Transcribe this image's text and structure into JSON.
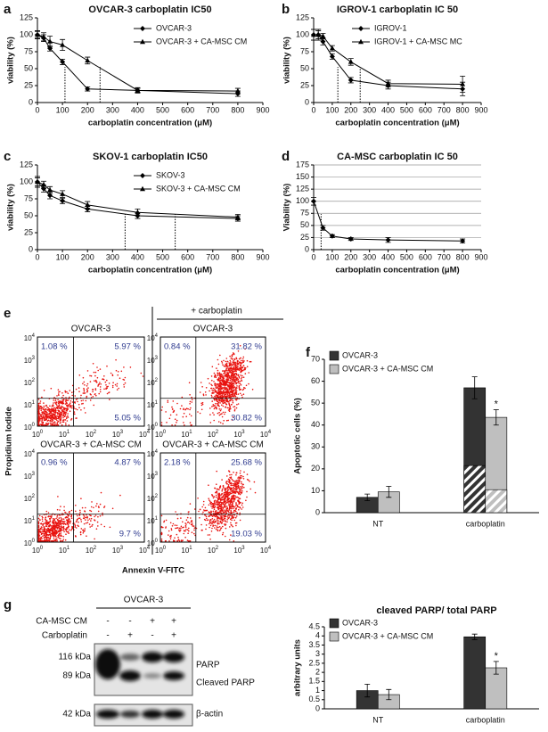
{
  "chart_data": [
    {
      "type": "line",
      "panel_label": "a",
      "title": "OVCAR-3 carboplatin IC50",
      "x_label": "carboplatin concentration (μM)",
      "y_label": "viability (%)",
      "x": [
        0,
        25,
        50,
        100,
        200,
        400,
        800
      ],
      "xlim": [
        0,
        900
      ],
      "xticks": [
        0,
        100,
        200,
        300,
        400,
        500,
        600,
        700,
        800,
        900
      ],
      "ylim": [
        0,
        125
      ],
      "yticks": [
        0,
        25,
        50,
        75,
        100,
        125
      ],
      "grid": false,
      "legend": "upper right",
      "reference_lines": [
        110,
        250
      ],
      "series": [
        {
          "name": "OVCAR-3",
          "color": "#000000",
          "marker": "diamond",
          "values": [
            100,
            95,
            80,
            60,
            20,
            18,
            13
          ],
          "errors": [
            5,
            5,
            4,
            4,
            3,
            3,
            4
          ]
        },
        {
          "name": "OVCAR-3 + CA-MSC CM",
          "color": "#000000",
          "marker": "triangle",
          "values": [
            100,
            97,
            90,
            85,
            62,
            18,
            17
          ],
          "errors": [
            6,
            6,
            8,
            8,
            5,
            4,
            4
          ]
        }
      ]
    },
    {
      "type": "line",
      "panel_label": "b",
      "title": "IGROV-1 carboplatin IC 50",
      "x_label": "carboplatin concentration (μM)",
      "y_label": "viability (%)",
      "x": [
        0,
        25,
        50,
        100,
        200,
        400,
        800
      ],
      "xlim": [
        0,
        900
      ],
      "xticks": [
        0,
        100,
        200,
        300,
        400,
        500,
        600,
        700,
        800,
        900
      ],
      "ylim": [
        0,
        125
      ],
      "yticks": [
        0,
        25,
        50,
        75,
        100,
        125
      ],
      "grid": false,
      "legend": "upper right",
      "reference_lines": [
        130,
        250
      ],
      "series": [
        {
          "name": "IGROV-1",
          "color": "#000000",
          "marker": "diamond",
          "values": [
            100,
            100,
            90,
            68,
            33,
            25,
            20
          ],
          "errors": [
            8,
            6,
            5,
            4,
            4,
            5,
            10
          ]
        },
        {
          "name": "IGROV-1 + CA-MSC MC",
          "color": "#000000",
          "marker": "triangle",
          "values": [
            100,
            100,
            98,
            80,
            60,
            28,
            27
          ],
          "errors": [
            8,
            8,
            4,
            4,
            5,
            5,
            12
          ]
        }
      ]
    },
    {
      "type": "line",
      "panel_label": "c",
      "title": "SKOV-1 carboplatin IC50",
      "x_label": "carboplatin concentration (μM)",
      "y_label": "viability (%)",
      "x": [
        0,
        25,
        50,
        100,
        200,
        400,
        800
      ],
      "xlim": [
        0,
        900
      ],
      "xticks": [
        0,
        100,
        200,
        300,
        400,
        500,
        600,
        700,
        800,
        900
      ],
      "ylim": [
        0,
        125
      ],
      "yticks": [
        0,
        25,
        50,
        75,
        100,
        125
      ],
      "grid": false,
      "legend": "upper right",
      "reference_lines": [
        350,
        550
      ],
      "series": [
        {
          "name": "SKOV-3",
          "color": "#000000",
          "marker": "diamond",
          "values": [
            100,
            90,
            80,
            72,
            60,
            50,
            46
          ],
          "errors": [
            8,
            5,
            5,
            4,
            4,
            4,
            4
          ]
        },
        {
          "name": "SKOV-3 + CA-MSC CM",
          "color": "#000000",
          "marker": "triangle",
          "values": [
            100,
            96,
            88,
            82,
            66,
            55,
            48
          ],
          "errors": [
            6,
            5,
            5,
            5,
            5,
            5,
            4
          ]
        }
      ]
    },
    {
      "type": "line",
      "panel_label": "d",
      "title": "CA-MSC carboplatin IC 50",
      "x_label": "carboplatin concentration (μM)",
      "y_label": "Viability (%)",
      "x": [
        0,
        50,
        100,
        200,
        400,
        800
      ],
      "xlim": [
        0,
        900
      ],
      "xticks": [
        0,
        100,
        200,
        300,
        400,
        500,
        600,
        700,
        800,
        900
      ],
      "ylim": [
        0,
        175
      ],
      "yticks": [
        0,
        25,
        50,
        75,
        100,
        125,
        150,
        175
      ],
      "grid": true,
      "reference_lines": [
        40
      ],
      "series": [
        {
          "color": "#000000",
          "marker": "diamond",
          "values": [
            100,
            45,
            28,
            22,
            20,
            18
          ],
          "errors": [
            8,
            5,
            3,
            3,
            5,
            4
          ]
        }
      ]
    },
    {
      "type": "bar",
      "panel_label": "f",
      "y_label": "Apoptotic cells (%)",
      "categories": [
        "NT",
        "carboplatin"
      ],
      "ylim": [
        0,
        70
      ],
      "yticks": [
        0,
        10,
        20,
        30,
        40,
        50,
        60,
        70
      ],
      "grid": false,
      "legend": "upper left",
      "series": [
        {
          "name": "OVCAR-3",
          "color": "#333333",
          "values": [
            7,
            57
          ],
          "errors": [
            1.5,
            5
          ],
          "hatched_values": [
            null,
            21.5
          ]
        },
        {
          "name": "OVCAR-3 + CA-MSC CM",
          "color": "#bfbfbf",
          "values": [
            9.5,
            43.5
          ],
          "errors": [
            2.5,
            3.5
          ],
          "hatched_values": [
            null,
            10.5
          ],
          "marks": [
            null,
            "*"
          ]
        }
      ]
    },
    {
      "type": "bar",
      "title": "cleaved PARP/ total PARP",
      "y_label": "arbitrary units",
      "categories": [
        "NT",
        "carboplatin"
      ],
      "ylim": [
        0,
        4.5
      ],
      "yticks": [
        0,
        0.5,
        1,
        1.5,
        2,
        2.5,
        3,
        3.5,
        4,
        4.5
      ],
      "grid": false,
      "legend": "upper left",
      "series": [
        {
          "name": "OVCAR-3",
          "color": "#333333",
          "values": [
            1.0,
            3.95
          ],
          "errors": [
            0.35,
            0.15
          ]
        },
        {
          "name": "OVCAR-3 + CA-MSC CM",
          "color": "#bfbfbf",
          "values": [
            0.78,
            2.25
          ],
          "errors": [
            0.28,
            0.35
          ],
          "marks": [
            null,
            "*"
          ]
        }
      ]
    }
  ],
  "flow": {
    "panel_label": "e",
    "treatment_header": "+ carboplatin",
    "y_label": "Propidium Iodide",
    "x_label": "Annexin V-FITC",
    "tick_base": "10",
    "tick_exponents": [
      "0",
      "1",
      "2",
      "3",
      "4"
    ],
    "plots": [
      {
        "title": "OVCAR-3",
        "quadrants": [
          "1.08 %",
          "5.97 %",
          "5.05 %"
        ]
      },
      {
        "title": "OVCAR-3",
        "quadrants": [
          "0.84 %",
          "31.82 %",
          "30.82 %"
        ]
      },
      {
        "title": "OVCAR-3 + CA-MSC CM",
        "quadrants": [
          "0.96 %",
          "4.87 %",
          "9.7 %"
        ]
      },
      {
        "title": "OVCAR-3 + CA-MSC CM",
        "quadrants": [
          "2.18 %",
          "25.68 %",
          "19.03 %"
        ]
      }
    ]
  },
  "blot": {
    "panel_label": "g",
    "header": "OVCAR-3",
    "row_labels": [
      "CA-MSC CM",
      "Carboplatin"
    ],
    "signs": [
      [
        "-",
        "-",
        "+",
        "+"
      ],
      [
        "-",
        "+",
        "-",
        "+"
      ]
    ],
    "markers": [
      "116 kDa",
      "89 kDa",
      "42 kDa"
    ],
    "band_labels": [
      "PARP",
      "Cleaved PARP",
      "β-actin"
    ]
  }
}
